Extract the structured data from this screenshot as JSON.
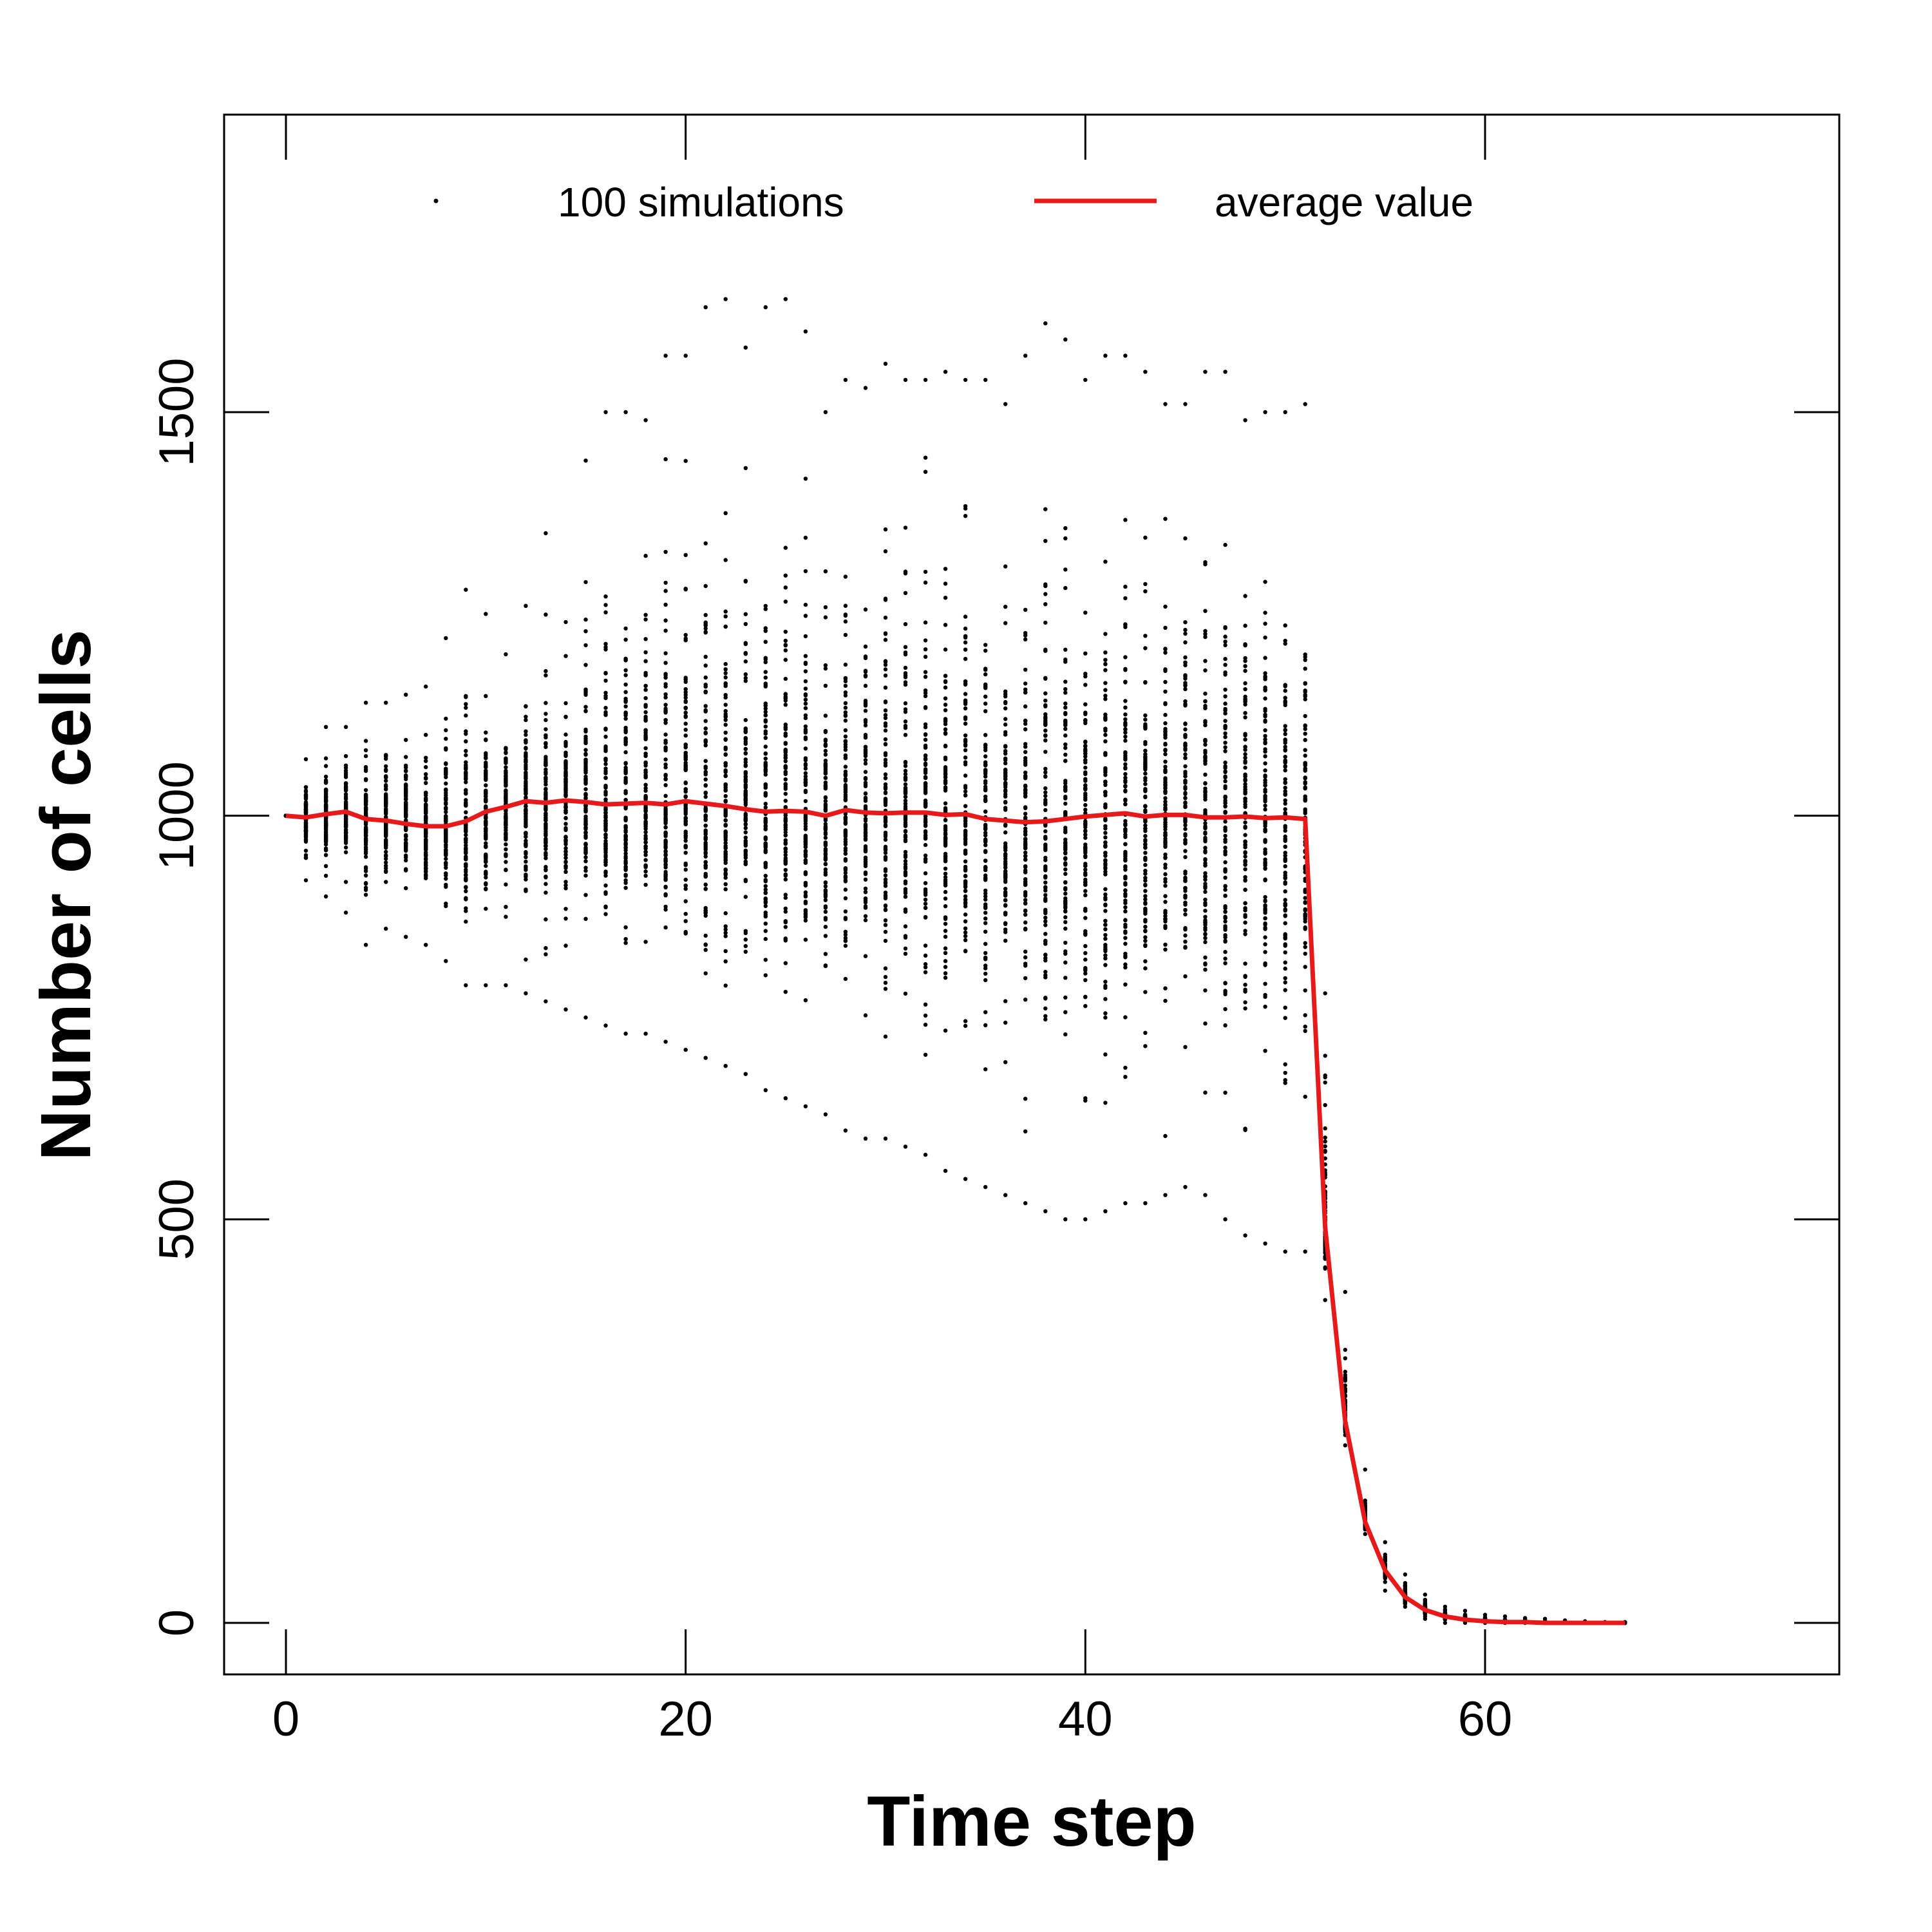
{
  "chart_data": {
    "type": "scatter",
    "title": "",
    "xlabel": "Time step",
    "ylabel": "Number of cells",
    "xlim": [
      -3,
      78
    ],
    "ylim": [
      -70,
      1880
    ],
    "x_ticks": [
      0,
      20,
      40,
      60
    ],
    "y_ticks": [
      0,
      500,
      1000,
      1500
    ],
    "grid": false,
    "legend": {
      "position": "top",
      "entries": [
        {
          "label": "100 simulations",
          "marker": "point"
        },
        {
          "label": "average value",
          "marker": "line"
        }
      ]
    },
    "colors": {
      "points": "#000000",
      "average": "#e8191b"
    },
    "series": [
      {
        "name": "100 simulations",
        "type": "scatter",
        "note_x": [
          0,
          67
        ],
        "band_lower": [
          [
            0,
            1000
          ],
          [
            1,
            920
          ],
          [
            2,
            900
          ],
          [
            3,
            880
          ],
          [
            4,
            840
          ],
          [
            5,
            860
          ],
          [
            6,
            850
          ],
          [
            7,
            840
          ],
          [
            8,
            820
          ],
          [
            9,
            790
          ],
          [
            10,
            790
          ],
          [
            11,
            790
          ],
          [
            12,
            780
          ],
          [
            13,
            770
          ],
          [
            14,
            760
          ],
          [
            15,
            750
          ],
          [
            16,
            740
          ],
          [
            17,
            730
          ],
          [
            18,
            730
          ],
          [
            19,
            720
          ],
          [
            20,
            710
          ],
          [
            21,
            700
          ],
          [
            22,
            690
          ],
          [
            23,
            680
          ],
          [
            24,
            660
          ],
          [
            25,
            650
          ],
          [
            26,
            640
          ],
          [
            27,
            630
          ],
          [
            28,
            610
          ],
          [
            29,
            600
          ],
          [
            30,
            600
          ],
          [
            31,
            590
          ],
          [
            32,
            580
          ],
          [
            33,
            560
          ],
          [
            34,
            550
          ],
          [
            35,
            540
          ],
          [
            36,
            530
          ],
          [
            37,
            520
          ],
          [
            38,
            510
          ],
          [
            39,
            500
          ],
          [
            40,
            500
          ],
          [
            41,
            510
          ],
          [
            42,
            520
          ],
          [
            43,
            520
          ],
          [
            44,
            530
          ],
          [
            45,
            540
          ],
          [
            46,
            530
          ],
          [
            47,
            500
          ],
          [
            48,
            480
          ],
          [
            49,
            470
          ],
          [
            50,
            460
          ],
          [
            51,
            460
          ],
          [
            52,
            400
          ],
          [
            53,
            220
          ],
          [
            54,
            110
          ],
          [
            55,
            40
          ],
          [
            56,
            20
          ],
          [
            57,
            5
          ],
          [
            58,
            0
          ],
          [
            59,
            0
          ],
          [
            60,
            0
          ],
          [
            61,
            0
          ],
          [
            62,
            0
          ],
          [
            63,
            0
          ],
          [
            64,
            0
          ],
          [
            65,
            0
          ],
          [
            66,
            0
          ],
          [
            67,
            0
          ]
        ],
        "band_upper": [
          [
            0,
            1000
          ],
          [
            1,
            1070
          ],
          [
            2,
            1110
          ],
          [
            3,
            1110
          ],
          [
            4,
            1140
          ],
          [
            5,
            1140
          ],
          [
            6,
            1150
          ],
          [
            7,
            1160
          ],
          [
            8,
            1220
          ],
          [
            9,
            1280
          ],
          [
            10,
            1250
          ],
          [
            11,
            1200
          ],
          [
            12,
            1260
          ],
          [
            13,
            1350
          ],
          [
            14,
            1240
          ],
          [
            15,
            1440
          ],
          [
            16,
            1500
          ],
          [
            17,
            1500
          ],
          [
            18,
            1490
          ],
          [
            19,
            1570
          ],
          [
            20,
            1570
          ],
          [
            21,
            1630
          ],
          [
            22,
            1640
          ],
          [
            23,
            1580
          ],
          [
            24,
            1630
          ],
          [
            25,
            1640
          ],
          [
            26,
            1600
          ],
          [
            27,
            1500
          ],
          [
            28,
            1540
          ],
          [
            29,
            1530
          ],
          [
            30,
            1560
          ],
          [
            31,
            1540
          ],
          [
            32,
            1540
          ],
          [
            33,
            1550
          ],
          [
            34,
            1540
          ],
          [
            35,
            1540
          ],
          [
            36,
            1510
          ],
          [
            37,
            1570
          ],
          [
            38,
            1610
          ],
          [
            39,
            1590
          ],
          [
            40,
            1540
          ],
          [
            41,
            1570
          ],
          [
            42,
            1570
          ],
          [
            43,
            1550
          ],
          [
            44,
            1510
          ],
          [
            45,
            1510
          ],
          [
            46,
            1550
          ],
          [
            47,
            1550
          ],
          [
            48,
            1490
          ],
          [
            49,
            1500
          ],
          [
            50,
            1500
          ],
          [
            51,
            1510
          ],
          [
            52,
            780
          ],
          [
            53,
            410
          ],
          [
            54,
            190
          ],
          [
            55,
            100
          ],
          [
            56,
            60
          ],
          [
            57,
            35
          ],
          [
            58,
            20
          ],
          [
            59,
            15
          ],
          [
            60,
            10
          ],
          [
            61,
            8
          ],
          [
            62,
            6
          ],
          [
            63,
            5
          ],
          [
            64,
            3
          ],
          [
            65,
            2
          ],
          [
            66,
            1
          ],
          [
            67,
            1
          ]
        ]
      },
      {
        "name": "average value",
        "type": "line",
        "x": [
          0,
          1,
          2,
          3,
          4,
          5,
          6,
          7,
          8,
          9,
          10,
          11,
          12,
          13,
          14,
          15,
          16,
          17,
          18,
          19,
          20,
          21,
          22,
          23,
          24,
          25,
          26,
          27,
          28,
          29,
          30,
          31,
          32,
          33,
          34,
          35,
          36,
          37,
          38,
          39,
          40,
          41,
          42,
          43,
          44,
          45,
          46,
          47,
          48,
          49,
          50,
          51,
          52,
          53,
          54,
          55,
          56,
          57,
          58,
          59,
          60,
          61,
          62,
          63,
          64,
          65,
          66,
          67
        ],
        "y": [
          1000,
          998,
          1002,
          1005,
          996,
          994,
          990,
          987,
          987,
          993,
          1005,
          1011,
          1018,
          1016,
          1019,
          1017,
          1014,
          1015,
          1016,
          1014,
          1018,
          1015,
          1012,
          1008,
          1005,
          1006,
          1005,
          1000,
          1007,
          1004,
          1003,
          1004,
          1004,
          1001,
          1002,
          996,
          994,
          992,
          993,
          996,
          999,
          1001,
          1003,
          999,
          1001,
          1001,
          998,
          998,
          999,
          997,
          998,
          996,
          490,
          250,
          125,
          65,
          32,
          16,
          8,
          4,
          2,
          1,
          1,
          0,
          0,
          0,
          0,
          0
        ]
      }
    ]
  }
}
